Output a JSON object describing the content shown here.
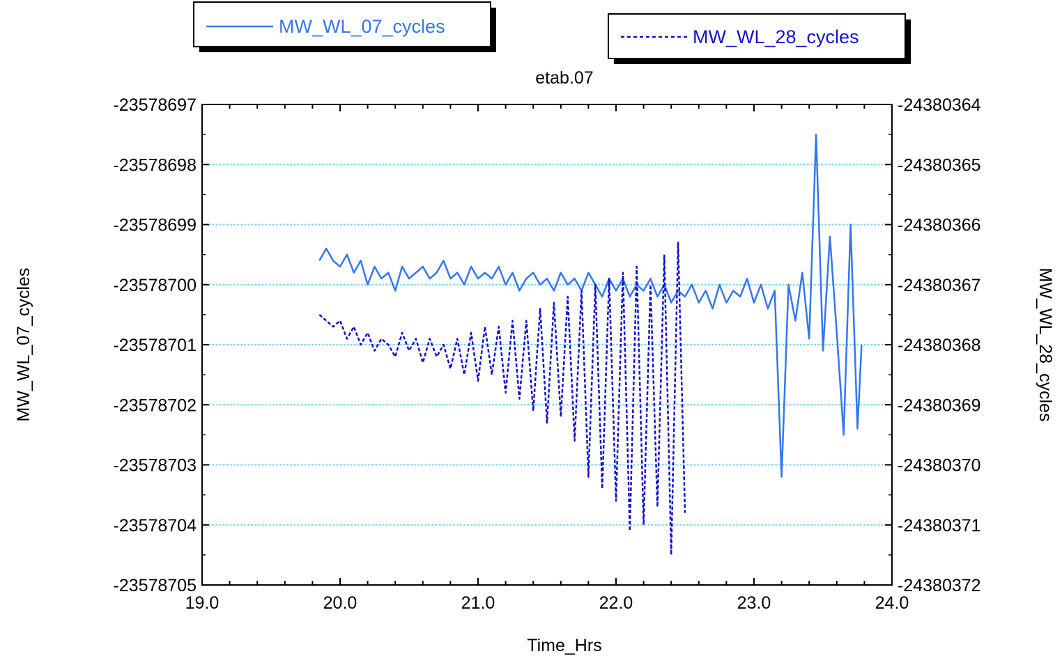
{
  "chart_data": {
    "type": "line",
    "title": "etab.07",
    "xlabel": "Time_Hrs",
    "ylabel_left": "MW_WL_07_cycles",
    "ylabel_right": "MW_WL_28_cycles",
    "xlim": [
      19.0,
      24.0
    ],
    "ylim_left": [
      -23578705,
      -23578697
    ],
    "ylim_right": [
      -24380372,
      -24380364
    ],
    "x_ticks": [
      "19.0",
      "20.0",
      "21.0",
      "22.0",
      "23.0",
      "24.0"
    ],
    "y_ticks_left": [
      "-23578697",
      "-23578698",
      "-23578699",
      "-23578700",
      "-23578701",
      "-23578702",
      "-23578703",
      "-23578704",
      "-23578705"
    ],
    "y_ticks_right": [
      "-24380364",
      "-24380365",
      "-24380366",
      "-24380367",
      "-24380368",
      "-24380369",
      "-24380370",
      "-24380371",
      "-24380372"
    ],
    "grid": "horizontal",
    "legend_placement": "top",
    "colors": {
      "series_07": "#3377ee",
      "series_28": "#1111cc",
      "grid": "#66ccee"
    },
    "series": [
      {
        "name": "MW_WL_07_cycles",
        "axis": "left",
        "style": "solid",
        "x": [
          19.85,
          19.9,
          19.95,
          20.0,
          20.05,
          20.1,
          20.15,
          20.2,
          20.25,
          20.3,
          20.35,
          20.4,
          20.45,
          20.5,
          20.55,
          20.6,
          20.65,
          20.7,
          20.75,
          20.8,
          20.85,
          20.9,
          20.95,
          21.0,
          21.05,
          21.1,
          21.15,
          21.2,
          21.25,
          21.3,
          21.35,
          21.4,
          21.45,
          21.5,
          21.55,
          21.6,
          21.65,
          21.7,
          21.75,
          21.8,
          21.85,
          21.9,
          21.95,
          22.0,
          22.05,
          22.1,
          22.15,
          22.2,
          22.25,
          22.3,
          22.35,
          22.4,
          22.45,
          22.5,
          22.55,
          22.6,
          22.65,
          22.7,
          22.75,
          22.8,
          22.85,
          22.9,
          22.95,
          23.0,
          23.05,
          23.1,
          23.15,
          23.2,
          23.25,
          23.3,
          23.35,
          23.4,
          23.45,
          23.5,
          23.55,
          23.6,
          23.65,
          23.7,
          23.75,
          23.78
        ],
        "values": [
          -23578699.6,
          -23578699.4,
          -23578699.6,
          -23578699.7,
          -23578699.5,
          -23578699.8,
          -23578699.6,
          -23578700.0,
          -23578699.7,
          -23578699.9,
          -23578699.8,
          -23578700.1,
          -23578699.7,
          -23578699.9,
          -23578699.8,
          -23578699.7,
          -23578699.9,
          -23578699.8,
          -23578699.6,
          -23578699.9,
          -23578699.8,
          -23578700.0,
          -23578699.7,
          -23578699.9,
          -23578699.8,
          -23578699.9,
          -23578699.7,
          -23578700.0,
          -23578699.8,
          -23578700.1,
          -23578699.9,
          -23578699.8,
          -23578700.0,
          -23578699.9,
          -23578700.1,
          -23578699.8,
          -23578700.0,
          -23578699.9,
          -23578700.1,
          -23578699.8,
          -23578700.0,
          -23578700.2,
          -23578699.9,
          -23578700.1,
          -23578699.9,
          -23578700.2,
          -23578700.0,
          -23578700.1,
          -23578699.9,
          -23578700.2,
          -23578700.0,
          -23578700.3,
          -23578700.1,
          -23578700.2,
          -23578700.0,
          -23578700.3,
          -23578700.1,
          -23578700.4,
          -23578700.0,
          -23578700.3,
          -23578700.1,
          -23578700.2,
          -23578699.9,
          -23578700.3,
          -23578700.0,
          -23578700.4,
          -23578700.1,
          -23578703.2,
          -23578700.0,
          -23578700.6,
          -23578699.8,
          -23578700.9,
          -23578697.5,
          -23578701.1,
          -23578699.2,
          -23578700.8,
          -23578702.5,
          -23578699.0,
          -23578702.4,
          -23578701.0
        ]
      },
      {
        "name": "MW_WL_28_cycles",
        "axis": "right",
        "style": "dashed",
        "x": [
          19.85,
          19.9,
          19.95,
          20.0,
          20.05,
          20.1,
          20.15,
          20.2,
          20.25,
          20.3,
          20.35,
          20.4,
          20.45,
          20.5,
          20.55,
          20.6,
          20.65,
          20.7,
          20.75,
          20.8,
          20.85,
          20.9,
          20.95,
          21.0,
          21.05,
          21.1,
          21.15,
          21.2,
          21.25,
          21.3,
          21.35,
          21.4,
          21.45,
          21.5,
          21.55,
          21.6,
          21.65,
          21.7,
          21.75,
          21.8,
          21.85,
          21.9,
          21.95,
          22.0,
          22.05,
          22.1,
          22.15,
          22.2,
          22.25,
          22.3,
          22.35,
          22.4,
          22.45,
          22.5
        ],
        "values": [
          -24380367.5,
          -24380367.6,
          -24380367.7,
          -24380367.6,
          -24380367.9,
          -24380367.7,
          -24380368.0,
          -24380367.8,
          -24380368.1,
          -24380367.9,
          -24380368.0,
          -24380368.2,
          -24380367.8,
          -24380368.1,
          -24380367.9,
          -24380368.3,
          -24380367.9,
          -24380368.2,
          -24380368.0,
          -24380368.4,
          -24380367.9,
          -24380368.5,
          -24380367.8,
          -24380368.6,
          -24380367.7,
          -24380368.5,
          -24380367.7,
          -24380368.8,
          -24380367.6,
          -24380368.9,
          -24380367.6,
          -24380369.1,
          -24380367.4,
          -24380369.3,
          -24380367.3,
          -24380369.2,
          -24380367.2,
          -24380369.6,
          -24380367.1,
          -24380370.2,
          -24380367.0,
          -24380370.4,
          -24380366.9,
          -24380370.6,
          -24380366.8,
          -24380371.1,
          -24380366.7,
          -24380371.0,
          -24380367.0,
          -24380370.7,
          -24380366.5,
          -24380371.5,
          -24380366.3,
          -24380370.8
        ]
      }
    ]
  }
}
